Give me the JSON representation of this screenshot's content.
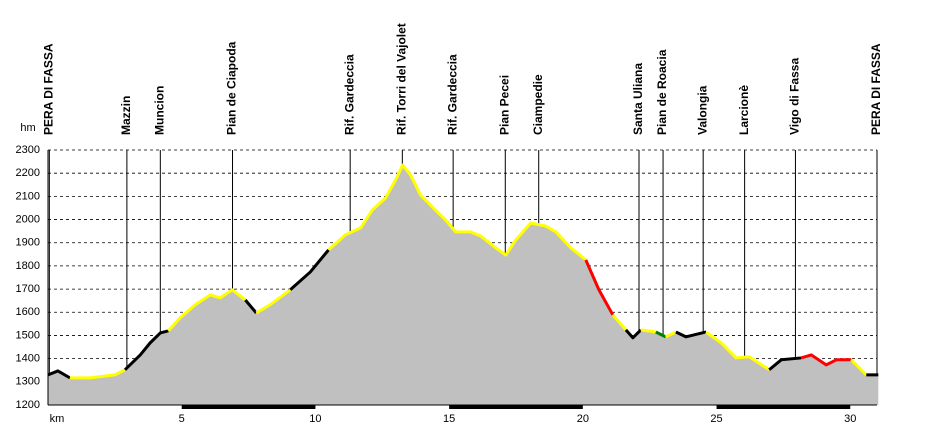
{
  "chart_data": {
    "type": "elevation-profile",
    "y_label": "hm",
    "x_label": "km",
    "xlim": [
      0,
      31
    ],
    "ylim": [
      1200,
      2300
    ],
    "xticks": [
      5,
      10,
      15,
      20,
      25,
      30
    ],
    "yticks": [
      1200,
      1300,
      1400,
      1500,
      1600,
      1700,
      1800,
      1900,
      2000,
      2100,
      2200,
      2300
    ],
    "grid": true,
    "fill_color": "#c0c0c0",
    "waypoints": [
      {
        "km": 0.05,
        "label": "PERA DI FASSA"
      },
      {
        "km": 2.95,
        "label": "Mazzin"
      },
      {
        "km": 4.2,
        "label": "Muncion"
      },
      {
        "km": 6.9,
        "label": "Pian de Ciapoda"
      },
      {
        "km": 11.3,
        "label": "Rif. Gardeccia"
      },
      {
        "km": 13.25,
        "label": "Rif. Torri del Vajolet"
      },
      {
        "km": 15.15,
        "label": "Rif. Gardeccia"
      },
      {
        "km": 17.1,
        "label": "Pian Pecei"
      },
      {
        "km": 18.35,
        "label": "Ciampedie"
      },
      {
        "km": 22.1,
        "label": "Santa Uliana"
      },
      {
        "km": 23.0,
        "label": "Pian de Roacia"
      },
      {
        "km": 24.5,
        "label": "Valongia"
      },
      {
        "km": 26.05,
        "label": "Larcionè"
      },
      {
        "km": 27.95,
        "label": "Vigo di Fassa"
      },
      {
        "km": 31,
        "label": "PERA DI FASSA"
      }
    ],
    "x": [
      0,
      0.37,
      0.82,
      1.57,
      2.5,
      2.88,
      3.45,
      3.82,
      4.2,
      4.5,
      4.94,
      5.5,
      6.07,
      6.44,
      6.89,
      7.38,
      7.79,
      8.3,
      9.06,
      9.81,
      10.49,
      11.12,
      11.69,
      12.13,
      12.62,
      13.0,
      13.26,
      13.56,
      13.93,
      14.49,
      14.87,
      15.24,
      15.8,
      16.18,
      16.74,
      17.12,
      17.49,
      18.05,
      18.61,
      18.99,
      19.55,
      20.11,
      20.6,
      21.12,
      21.61,
      21.87,
      22.17,
      22.73,
      23.1,
      23.48,
      23.86,
      24.61,
      25.17,
      25.73,
      26.22,
      26.97,
      27.42,
      28.16,
      28.54,
      29.1,
      29.48,
      30.04,
      30.6,
      31.05
    ],
    "values": [
      1330,
      1347,
      1317,
      1317,
      1330,
      1352,
      1416,
      1468,
      1511,
      1520,
      1576,
      1632,
      1675,
      1662,
      1697,
      1653,
      1597,
      1632,
      1697,
      1774,
      1869,
      1934,
      1964,
      2041,
      2093,
      2171,
      2235,
      2192,
      2106,
      2041,
      1998,
      1947,
      1947,
      1929,
      1878,
      1847,
      1912,
      1985,
      1972,
      1947,
      1878,
      1826,
      1697,
      1589,
      1524,
      1490,
      1524,
      1515,
      1494,
      1515,
      1494,
      1515,
      1468,
      1403,
      1408,
      1352,
      1395,
      1403,
      1416,
      1373,
      1395,
      1395,
      1330,
      1330
    ],
    "segment_colors": [
      "#000000",
      "#000000",
      "#ffff00",
      "#ffff00",
      "#ffff00",
      "#000000",
      "#000000",
      "#000000",
      "#000000",
      "#ffff00",
      "#ffff00",
      "#ffff00",
      "#ffff00",
      "#ffff00",
      "#ffff00",
      "#000000",
      "#ffff00",
      "#ffff00",
      "#000000",
      "#000000",
      "#ffff00",
      "#ffff00",
      "#ffff00",
      "#ffff00",
      "#ffff00",
      "#ffff00",
      "#ffff00",
      "#ffff00",
      "#ffff00",
      "#ffff00",
      "#ffff00",
      "#ffff00",
      "#ffff00",
      "#ffff00",
      "#ffff00",
      "#ffff00",
      "#ffff00",
      "#ffff00",
      "#ffff00",
      "#ffff00",
      "#ffff00",
      "#ff0000",
      "#ff0000",
      "#ffff00",
      "#000000",
      "#000000",
      "#ffff00",
      "#008000",
      "#ffff00",
      "#000000",
      "#000000",
      "#ffff00",
      "#ffff00",
      "#ffff00",
      "#ffff00",
      "#000000",
      "#000000",
      "#ff0000",
      "#ff0000",
      "#ff0000",
      "#ff0000",
      "#ffff00",
      "#000000"
    ]
  }
}
